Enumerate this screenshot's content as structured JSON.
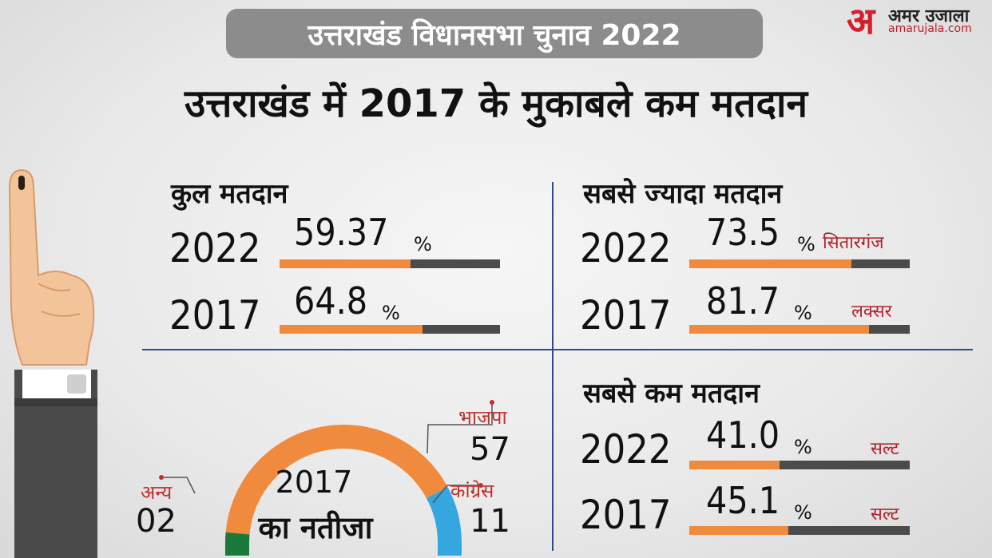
{
  "header": {
    "pill": "उत्तराखंड विधानसभा चुनाव 2022",
    "headline": "उत्तराखंड में 2017 के मुकाबले कम मतदान"
  },
  "logo": {
    "mark": "अ",
    "name": "अमर उजाला",
    "url": "amarujala.com"
  },
  "colors": {
    "bar_fill": "#f08a3c",
    "bar_track": "#4b4b4b",
    "bjp": "#f08a3c",
    "congress": "#35a6e0",
    "others": "#1a7a3a",
    "pill": "#8c8c8c",
    "accent_red": "#b3202a"
  },
  "icons": [
    "voting-finger-icon"
  ],
  "chart_data": [
    {
      "type": "bar",
      "title": "कुल मतदान",
      "categories": [
        "2022",
        "2017"
      ],
      "values": [
        59.37,
        64.8
      ],
      "value_labels": [
        "59.37",
        "64.8"
      ],
      "unit": "%",
      "places": [
        "",
        ""
      ]
    },
    {
      "type": "bar",
      "title": "सबसे ज्यादा मतदान",
      "categories": [
        "2022",
        "2017"
      ],
      "values": [
        73.5,
        81.7
      ],
      "value_labels": [
        "73.5",
        "81.7"
      ],
      "unit": "%",
      "places": [
        "सितारगंज",
        "लक्सर"
      ]
    },
    {
      "type": "bar",
      "title": "सबसे कम मतदान",
      "categories": [
        "2022",
        "2017"
      ],
      "values": [
        41.0,
        45.1
      ],
      "value_labels": [
        "41.0",
        "45.1"
      ],
      "unit": "%",
      "places": [
        "सल्ट",
        "सल्ट"
      ]
    },
    {
      "type": "pie",
      "title_line1": "2017",
      "title_line2": "का नतीजा",
      "categories": [
        "अन्य",
        "भाजपा",
        "कांग्रेस"
      ],
      "values": [
        2,
        57,
        11
      ],
      "value_labels": [
        "02",
        "57",
        "11"
      ],
      "colors": [
        "#1a7a3a",
        "#f08a3c",
        "#35a6e0"
      ]
    }
  ]
}
